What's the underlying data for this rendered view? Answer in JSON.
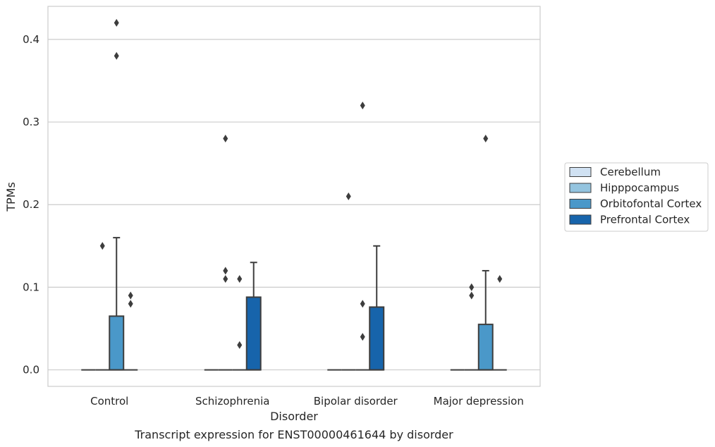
{
  "chart_data": {
    "type": "box",
    "caption": "Transcript expression for ENST00000461644 by disorder",
    "xlabel": "Disorder",
    "ylabel": "TPMs",
    "ylim": [
      -0.02,
      0.44
    ],
    "yticks": [
      "0.0",
      "0.1",
      "0.2",
      "0.3",
      "0.4"
    ],
    "grid": "horizontal",
    "legend_position": "right",
    "categories": [
      "Control",
      "Schizophrenia",
      "Bipolar disorder",
      "Major depression"
    ],
    "series": [
      {
        "name": "Cerebellum",
        "color": "#d0e1f2",
        "boxes": [
          {
            "q1": 0,
            "median": 0,
            "q3": 0,
            "whisker_low": 0,
            "whisker_high": 0,
            "outliers": []
          },
          {
            "q1": 0,
            "median": 0,
            "q3": 0,
            "whisker_low": 0,
            "whisker_high": 0,
            "outliers": []
          },
          {
            "q1": 0,
            "median": 0,
            "q3": 0,
            "whisker_low": 0,
            "whisker_high": 0,
            "outliers": []
          },
          {
            "q1": 0,
            "median": 0,
            "q3": 0,
            "whisker_low": 0,
            "whisker_high": 0,
            "outliers": []
          }
        ]
      },
      {
        "name": "Hipppocampus",
        "color": "#94c4df",
        "boxes": [
          {
            "q1": 0,
            "median": 0,
            "q3": 0,
            "whisker_low": 0,
            "whisker_high": 0,
            "outliers": [
              0.15
            ]
          },
          {
            "q1": 0,
            "median": 0,
            "q3": 0,
            "whisker_low": 0,
            "whisker_high": 0,
            "outliers": [
              0.28,
              0.12,
              0.11
            ]
          },
          {
            "q1": 0,
            "median": 0,
            "q3": 0,
            "whisker_low": 0,
            "whisker_high": 0,
            "outliers": [
              0.21
            ]
          },
          {
            "q1": 0,
            "median": 0,
            "q3": 0,
            "whisker_low": 0,
            "whisker_high": 0,
            "outliers": [
              0.1,
              0.09
            ]
          }
        ]
      },
      {
        "name": "Orbitofontal Cortex",
        "color": "#4a98c9",
        "boxes": [
          {
            "q1": 0,
            "median": 0,
            "q3": 0.065,
            "whisker_low": 0,
            "whisker_high": 0.16,
            "outliers": [
              0.42,
              0.38
            ]
          },
          {
            "q1": 0,
            "median": 0,
            "q3": 0,
            "whisker_low": 0,
            "whisker_high": 0,
            "outliers": [
              0.11,
              0.03
            ]
          },
          {
            "q1": 0,
            "median": 0,
            "q3": 0,
            "whisker_low": 0,
            "whisker_high": 0,
            "outliers": [
              0.32,
              0.08,
              0.04
            ]
          },
          {
            "q1": 0,
            "median": 0,
            "q3": 0.055,
            "whisker_low": 0,
            "whisker_high": 0.12,
            "outliers": [
              0.28
            ]
          }
        ]
      },
      {
        "name": "Prefrontal Cortex",
        "color": "#1764ab",
        "boxes": [
          {
            "q1": 0,
            "median": 0,
            "q3": 0,
            "whisker_low": 0,
            "whisker_high": 0,
            "outliers": [
              0.09,
              0.08
            ]
          },
          {
            "q1": 0,
            "median": 0,
            "q3": 0.088,
            "whisker_low": 0,
            "whisker_high": 0.13,
            "outliers": []
          },
          {
            "q1": 0,
            "median": 0,
            "q3": 0.076,
            "whisker_low": 0,
            "whisker_high": 0.15,
            "outliers": []
          },
          {
            "q1": 0,
            "median": 0,
            "q3": 0,
            "whisker_low": 0,
            "whisker_high": 0,
            "outliers": [
              0.11
            ]
          }
        ]
      }
    ]
  }
}
